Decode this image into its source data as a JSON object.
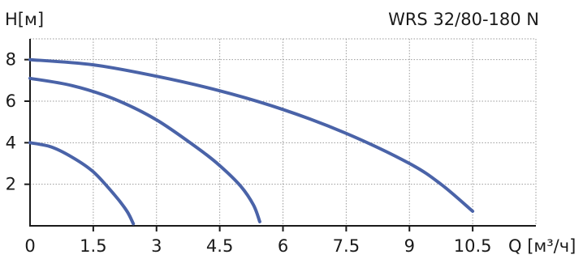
{
  "chart_data": {
    "type": "line",
    "title": "WRS 32/80-180 N",
    "ylabel": "H[м]",
    "xlabel": "Q [м³/ч]",
    "xlim": [
      0,
      12.0
    ],
    "ylim": [
      0,
      9.0
    ],
    "xticks": [
      0,
      1.5,
      3,
      4.5,
      6,
      7.5,
      9,
      10.5
    ],
    "xtick_labels": [
      "0",
      "1.5",
      "3",
      "4.5",
      "6",
      "7.5",
      "9",
      "10.5"
    ],
    "yticks": [
      2,
      4,
      6,
      8
    ],
    "ytick_labels": [
      "2",
      "4",
      "6",
      "8"
    ],
    "grid": true,
    "line_color": "#4a63a8",
    "series": [
      {
        "x": [
          0,
          0.5,
          1.0,
          1.5,
          2.0,
          2.3,
          2.45
        ],
        "y": [
          4.0,
          3.8,
          3.3,
          2.6,
          1.5,
          0.7,
          0.1
        ]
      },
      {
        "x": [
          0,
          1.0,
          2.0,
          3.0,
          4.0,
          4.5,
          5.0,
          5.3,
          5.45
        ],
        "y": [
          7.1,
          6.75,
          6.1,
          5.1,
          3.7,
          2.9,
          1.9,
          1.0,
          0.2
        ]
      },
      {
        "x": [
          0,
          1.5,
          3.0,
          4.5,
          6.0,
          7.5,
          9.0,
          9.75,
          10.5
        ],
        "y": [
          8.0,
          7.75,
          7.2,
          6.5,
          5.6,
          4.45,
          3.0,
          2.0,
          0.7
        ]
      }
    ]
  }
}
